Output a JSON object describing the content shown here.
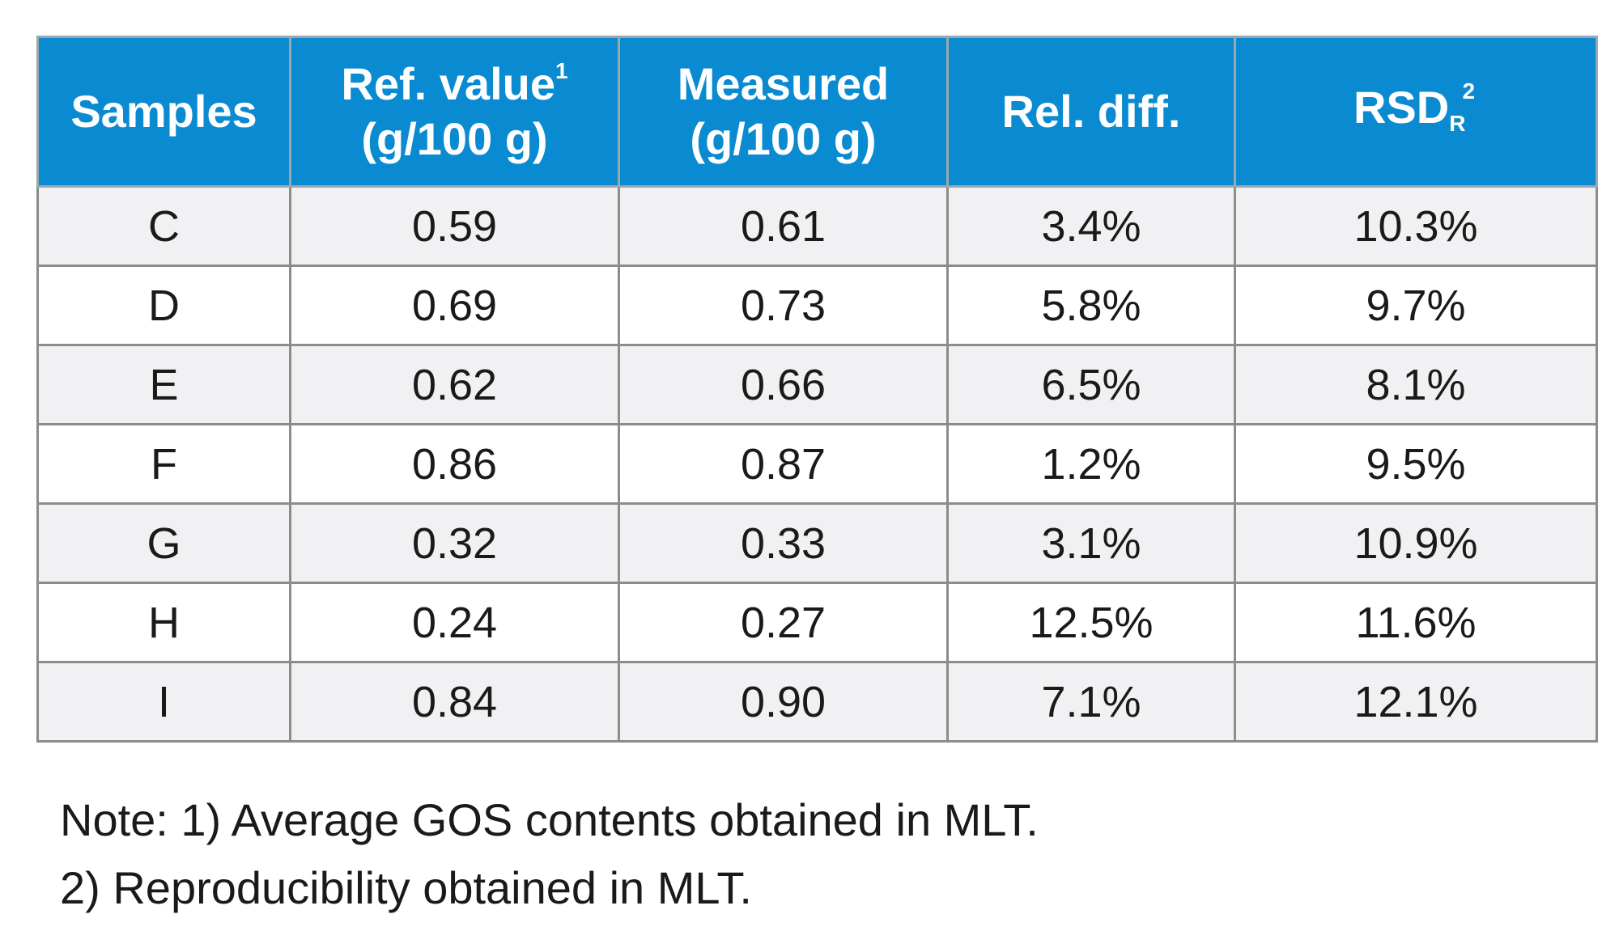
{
  "table": {
    "headers": {
      "samples": "Samples",
      "ref_value": {
        "line1": "Ref. value",
        "sup": "1",
        "line2": "(g/100 g)"
      },
      "measured": {
        "line1": "Measured",
        "line2": "(g/100 g)"
      },
      "rel_diff": "Rel. diff.",
      "rsd": {
        "base": "RSD",
        "sub": "R",
        "sup": "2"
      }
    },
    "rows": [
      {
        "sample": "C",
        "ref": "0.59",
        "measured": "0.61",
        "rel_diff": "3.4%",
        "rsd": "10.3%"
      },
      {
        "sample": "D",
        "ref": "0.69",
        "measured": "0.73",
        "rel_diff": "5.8%",
        "rsd": "9.7%"
      },
      {
        "sample": "E",
        "ref": "0.62",
        "measured": "0.66",
        "rel_diff": "6.5%",
        "rsd": "8.1%"
      },
      {
        "sample": "F",
        "ref": "0.86",
        "measured": "0.87",
        "rel_diff": "1.2%",
        "rsd": "9.5%"
      },
      {
        "sample": "G",
        "ref": "0.32",
        "measured": "0.33",
        "rel_diff": "3.1%",
        "rsd": "10.9%"
      },
      {
        "sample": "H",
        "ref": "0.24",
        "measured": "0.27",
        "rel_diff": "12.5%",
        "rsd": "11.6%"
      },
      {
        "sample": "I",
        "ref": "0.84",
        "measured": "0.90",
        "rel_diff": "7.1%",
        "rsd": "12.1%"
      }
    ]
  },
  "notes": {
    "line1": "Note: 1) Average GOS contents obtained in MLT.",
    "line2": "2) Reproducibility obtained in MLT."
  },
  "colors": {
    "header_bg": "#0a8bd1",
    "header_text": "#ffffff",
    "row_alt_bg": "#f1f1f3",
    "border": "#8c8c8c"
  }
}
